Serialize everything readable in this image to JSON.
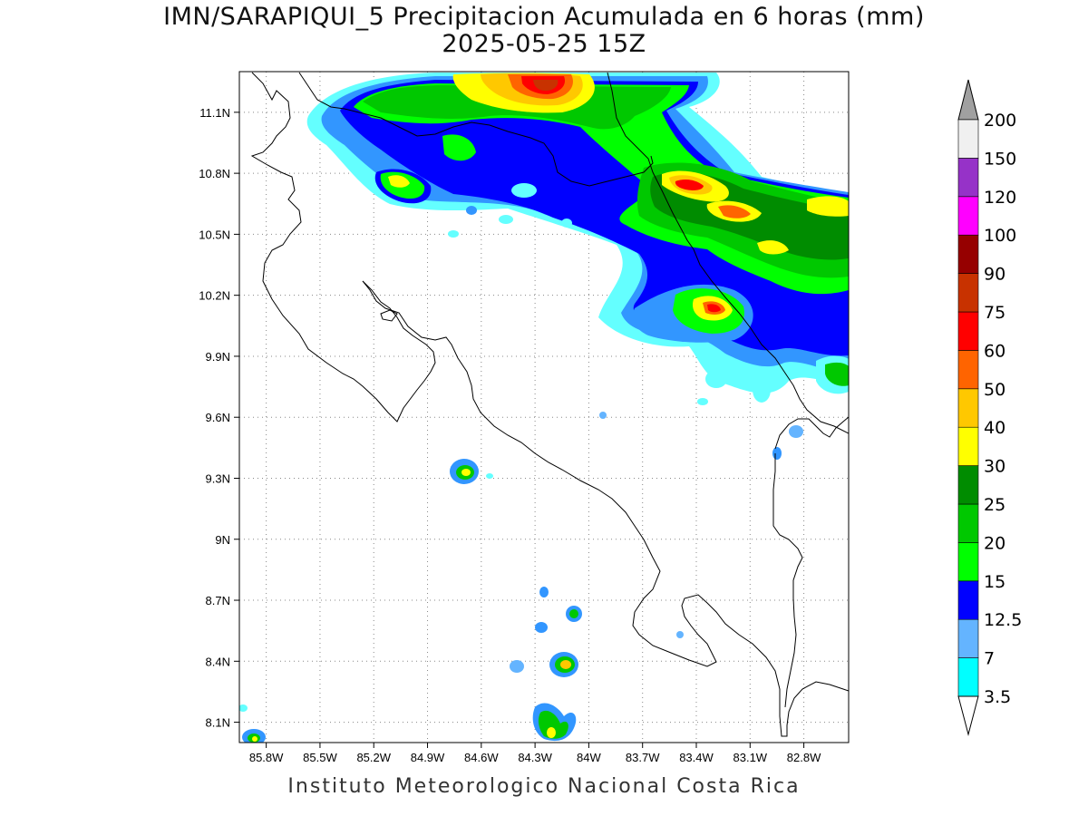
{
  "header": {
    "title_line1": "IMN/SARAPIQUI_5 Precipitacion Acumulada en 6 horas (mm)",
    "title_line2": "2025-05-25 15Z"
  },
  "footer": {
    "credit": "Instituto Meteorologico Nacional Costa Rica"
  },
  "map": {
    "lon_range": [
      -85.95,
      -82.55
    ],
    "lat_range": [
      8.0,
      11.3
    ],
    "lon_ticks": [
      "85.8W",
      "85.5W",
      "85.2W",
      "84.9W",
      "84.6W",
      "84.3W",
      "84W",
      "83.7W",
      "83.4W",
      "83.1W",
      "82.8W"
    ],
    "lat_ticks": [
      "11.1N",
      "10.8N",
      "10.5N",
      "10.2N",
      "9.9N",
      "9.6N",
      "9.3N",
      "9N",
      "8.7N",
      "8.4N",
      "8.1N"
    ],
    "lon_tick_values": [
      -85.8,
      -85.5,
      -85.2,
      -84.9,
      -84.6,
      -84.3,
      -84.0,
      -83.7,
      -83.4,
      -83.1,
      -82.8
    ],
    "lat_tick_values": [
      11.1,
      10.8,
      10.5,
      10.2,
      9.9,
      9.6,
      9.3,
      9.0,
      8.7,
      8.4,
      8.1
    ],
    "grid": true
  },
  "colorbar": {
    "levels": [
      "3.5",
      "7",
      "12.5",
      "15",
      "20",
      "25",
      "30",
      "40",
      "50",
      "60",
      "75",
      "90",
      "100",
      "120",
      "150",
      "200"
    ],
    "colors": [
      "#00ffff",
      "#64b4ff",
      "#0000ff",
      "#00ff00",
      "#00c800",
      "#008c00",
      "#ffff00",
      "#ffc800",
      "#ff6400",
      "#ff0000",
      "#c83200",
      "#960000",
      "#ff00ff",
      "#9632c8",
      "#f0f0f0"
    ],
    "over_color": "#a0a0a0",
    "under_color": "#ffffff"
  }
}
